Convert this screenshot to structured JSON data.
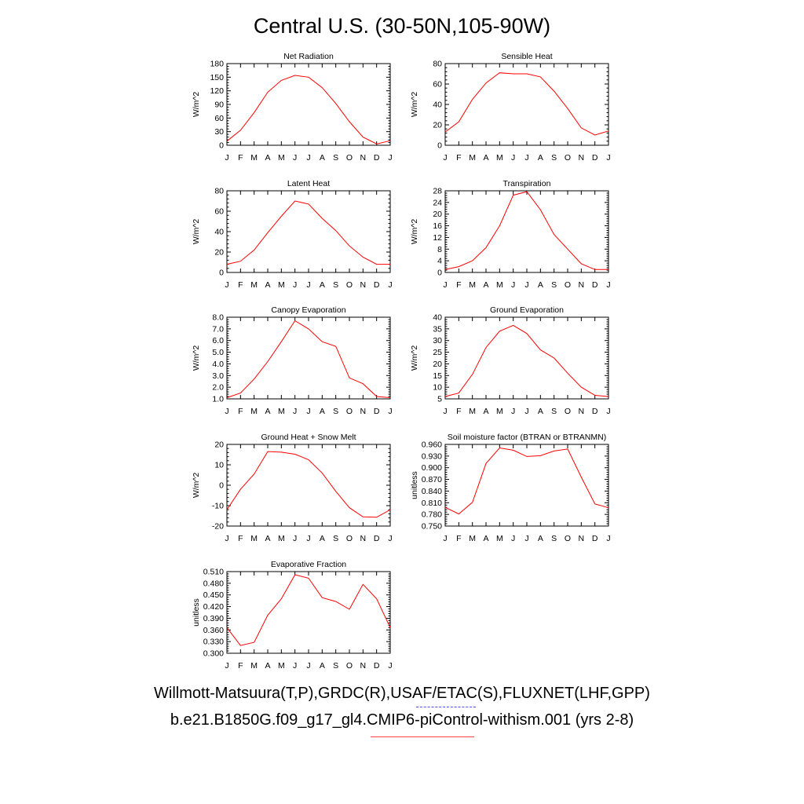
{
  "title": "Central U.S. (30-50N,105-90W)",
  "footer": {
    "obs_line": "Willmott-Matsuura(T,P),GRDC(R),USAF/ETAC(S),FLUXNET(LHF,GPP)",
    "case_line": "b.e21.B1850G.f09_g17_gl4.CMIP6-piControl-withism.001 (yrs 2-8)"
  },
  "colors": {
    "model_line": "#ff0000",
    "obs_legend_dash": "#4a4aff",
    "case_legend_line": "#ff4040"
  },
  "chart_data": [
    {
      "type": "line",
      "title": "Net Radiation",
      "ylabel": "W/m^2",
      "x": [
        "J",
        "F",
        "M",
        "A",
        "M",
        "J",
        "J",
        "A",
        "S",
        "O",
        "N",
        "D",
        "J"
      ],
      "series": [
        {
          "values": [
            9,
            33,
            72,
            117,
            143,
            154,
            150,
            127,
            92,
            52,
            18,
            3,
            10
          ]
        }
      ],
      "ylim": [
        0,
        180
      ],
      "yticks": [
        "0",
        "30",
        "60",
        "90",
        "120",
        "150",
        "180"
      ]
    },
    {
      "type": "line",
      "title": "Sensible Heat",
      "ylabel": "W/m^2",
      "x": [
        "J",
        "F",
        "M",
        "A",
        "M",
        "J",
        "J",
        "A",
        "S",
        "O",
        "N",
        "D",
        "J"
      ],
      "series": [
        {
          "values": [
            13,
            23,
            45,
            61,
            71,
            70,
            70,
            67,
            53,
            36,
            17,
            10,
            14
          ]
        }
      ],
      "ylim": [
        0,
        80
      ],
      "yticks": [
        "0",
        "20",
        "40",
        "60",
        "80"
      ]
    },
    {
      "type": "line",
      "title": "Latent Heat",
      "ylabel": "W/m^2",
      "x": [
        "J",
        "F",
        "M",
        "A",
        "M",
        "J",
        "J",
        "A",
        "S",
        "O",
        "N",
        "D",
        "J"
      ],
      "series": [
        {
          "values": [
            8,
            11,
            22,
            39,
            55,
            70,
            67,
            53,
            41,
            26,
            15,
            8,
            8
          ]
        }
      ],
      "ylim": [
        0,
        80
      ],
      "yticks": [
        "0",
        "20",
        "40",
        "60",
        "80"
      ]
    },
    {
      "type": "line",
      "title": "Transpiration",
      "ylabel": "W/m^2",
      "x": [
        "J",
        "F",
        "M",
        "A",
        "M",
        "J",
        "J",
        "A",
        "S",
        "O",
        "N",
        "D",
        "J"
      ],
      "series": [
        {
          "values": [
            1,
            2,
            4,
            8.5,
            16,
            26.5,
            27.7,
            21.5,
            13,
            8,
            3,
            1,
            1
          ]
        }
      ],
      "ylim": [
        0,
        28
      ],
      "yticks": [
        "0",
        "4",
        "8",
        "12",
        "16",
        "20",
        "24",
        "28"
      ]
    },
    {
      "type": "line",
      "title": "Canopy Evaporation",
      "ylabel": "W/m^2",
      "x": [
        "J",
        "F",
        "M",
        "A",
        "M",
        "J",
        "J",
        "A",
        "S",
        "O",
        "N",
        "D",
        "J"
      ],
      "series": [
        {
          "values": [
            1.1,
            1.5,
            2.7,
            4.2,
            5.9,
            7.7,
            7.0,
            5.9,
            5.5,
            2.8,
            2.3,
            1.2,
            1.1
          ]
        }
      ],
      "ylim": [
        1.0,
        8.0
      ],
      "yticks": [
        "1.0",
        "2.0",
        "3.0",
        "4.0",
        "5.0",
        "6.0",
        "7.0",
        "8.0"
      ]
    },
    {
      "type": "line",
      "title": "Ground Evaporation",
      "ylabel": "W/m^2",
      "x": [
        "J",
        "F",
        "M",
        "A",
        "M",
        "J",
        "J",
        "A",
        "S",
        "O",
        "N",
        "D",
        "J"
      ],
      "series": [
        {
          "values": [
            6,
            7.5,
            15.5,
            27,
            34,
            36.5,
            33,
            26,
            22.5,
            16,
            10,
            6.5,
            6
          ]
        }
      ],
      "ylim": [
        5,
        40
      ],
      "yticks": [
        "5",
        "10",
        "15",
        "20",
        "25",
        "30",
        "35",
        "40"
      ]
    },
    {
      "type": "line",
      "title": "Ground Heat + Snow Melt",
      "ylabel": "W/m^2",
      "x": [
        "J",
        "F",
        "M",
        "A",
        "M",
        "J",
        "J",
        "A",
        "S",
        "O",
        "N",
        "D",
        "J"
      ],
      "series": [
        {
          "values": [
            -12,
            -2,
            5.5,
            16.5,
            16.2,
            15.2,
            12.5,
            6,
            -3,
            -11,
            -15.5,
            -15.7,
            -12
          ]
        }
      ],
      "ylim": [
        -20,
        20
      ],
      "yticks": [
        "-20",
        "-10",
        "0",
        "10",
        "20"
      ]
    },
    {
      "type": "line",
      "title": "Soil moisture factor (BTRAN or BTRANMN)",
      "ylabel": "unitless",
      "x": [
        "J",
        "F",
        "M",
        "A",
        "M",
        "J",
        "J",
        "A",
        "S",
        "O",
        "N",
        "D",
        "J"
      ],
      "series": [
        {
          "values": [
            0.798,
            0.781,
            0.811,
            0.911,
            0.951,
            0.945,
            0.929,
            0.931,
            0.943,
            0.948,
            0.876,
            0.807,
            0.797
          ]
        }
      ],
      "ylim": [
        0.75,
        0.96
      ],
      "yticks": [
        "0.750",
        "0.780",
        "0.810",
        "0.840",
        "0.870",
        "0.900",
        "0.930",
        "0.960"
      ]
    },
    {
      "type": "line",
      "title": "Evaporative Fraction",
      "ylabel": "unitless",
      "x": [
        "J",
        "F",
        "M",
        "A",
        "M",
        "J",
        "J",
        "A",
        "S",
        "O",
        "N",
        "D",
        "J"
      ],
      "series": [
        {
          "values": [
            0.366,
            0.32,
            0.328,
            0.398,
            0.44,
            0.502,
            0.493,
            0.443,
            0.433,
            0.413,
            0.477,
            0.44,
            0.366
          ]
        }
      ],
      "ylim": [
        0.3,
        0.51
      ],
      "yticks": [
        "0.300",
        "0.330",
        "0.360",
        "0.390",
        "0.420",
        "0.450",
        "0.480",
        "0.510"
      ]
    }
  ]
}
